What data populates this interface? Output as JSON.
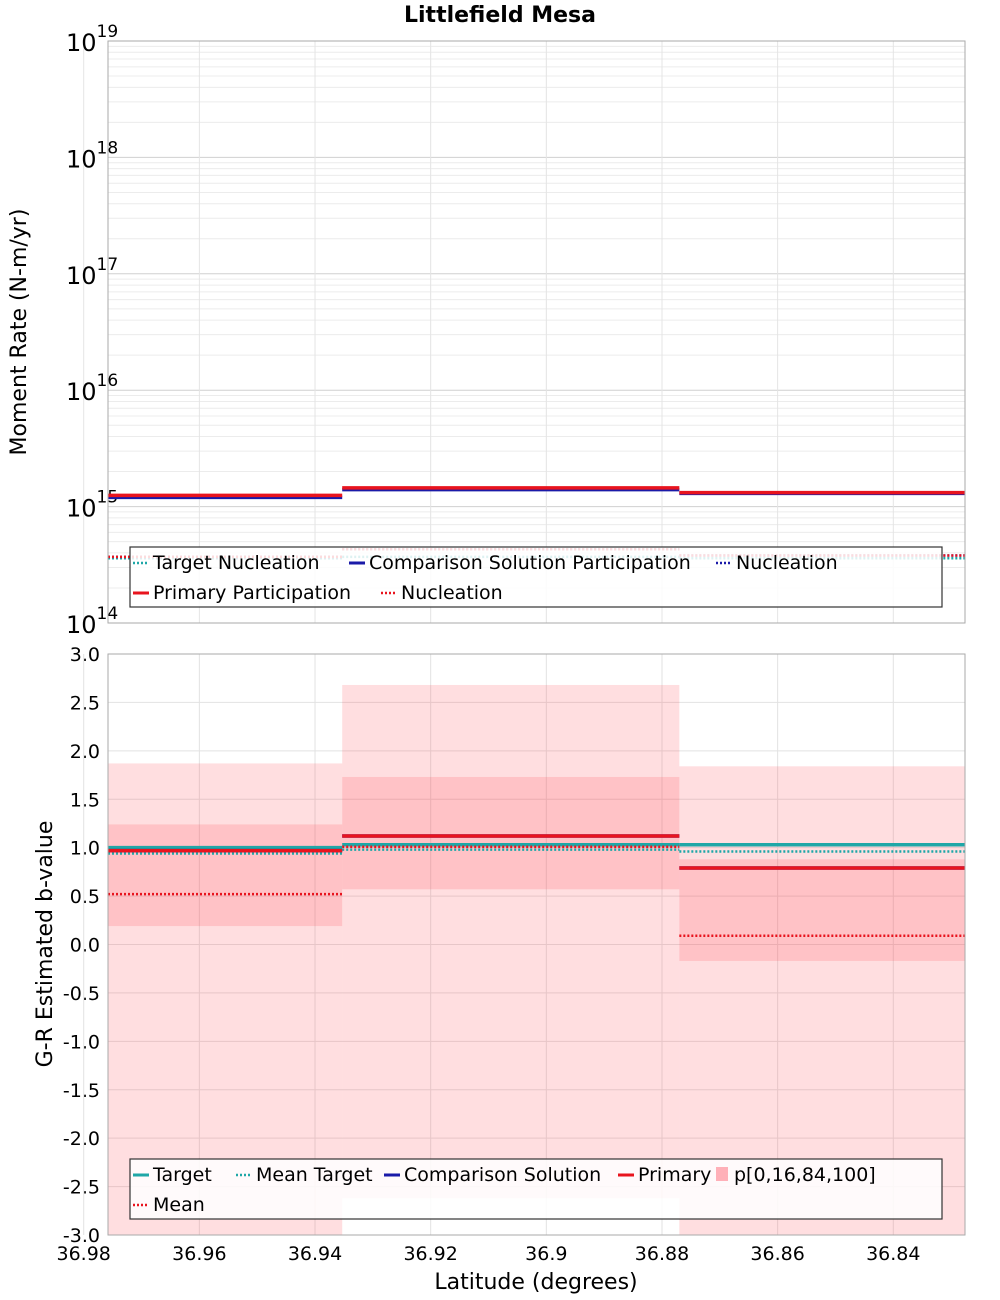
{
  "chart_data": [
    {
      "type": "line",
      "title": "Littlefield Mesa",
      "xlabel": "",
      "ylabel": "Moment Rate (N-m/yr)",
      "yscale": "log",
      "ylim": [
        100000000000000.0,
        1e+19
      ],
      "xlim": [
        36.9758,
        36.8276
      ],
      "x_reversed": true,
      "grid": true,
      "y_tick_labels": [
        {
          "value": 100000000000000.0,
          "base": "10",
          "exp": "14"
        },
        {
          "value": 1000000000000000.0,
          "base": "10",
          "exp": "15"
        },
        {
          "value": 1e+16,
          "base": "10",
          "exp": "16"
        },
        {
          "value": 1e+17,
          "base": "10",
          "exp": "17"
        },
        {
          "value": 1e+18,
          "base": "10",
          "exp": "18"
        },
        {
          "value": 1e+19,
          "base": "10",
          "exp": "19"
        }
      ],
      "bin_edges": [
        36.9758,
        36.9353,
        36.877,
        36.8276
      ],
      "series": [
        {
          "name": "Target Nucleation",
          "style": "dotted",
          "color": "#1fa7a7",
          "values": [
            360000000000000.0,
            370000000000000.0,
            360000000000000.0
          ]
        },
        {
          "name": "Comparison Solution Participation",
          "style": "solid",
          "color": "#1a1aa8",
          "values": [
            1200000000000000.0,
            1400000000000000.0,
            1300000000000000.0
          ]
        },
        {
          "name": "Nucleation",
          "style": "dotted",
          "color": "#1a1aa8",
          "values": [
            370000000000000.0,
            430000000000000.0,
            380000000000000.0
          ]
        },
        {
          "name": "Primary Participation",
          "style": "solid",
          "color": "#e8141e",
          "values": [
            1250000000000000.0,
            1450000000000000.0,
            1320000000000000.0
          ]
        },
        {
          "name": "Nucleation",
          "style": "dotted",
          "color": "#e8141e",
          "values": [
            370000000000000.0,
            430000000000000.0,
            380000000000000.0
          ]
        }
      ],
      "legend": {
        "placement": "bottom",
        "row1": [
          "Target Nucleation",
          "Comparison Solution Participation",
          "Nucleation"
        ],
        "row2": [
          "Primary Participation",
          "Nucleation"
        ]
      }
    },
    {
      "type": "line",
      "title": "",
      "xlabel": "Latitude (degrees)",
      "ylabel": "G-R Estimated b-value",
      "ylim": [
        -3.0,
        3.0
      ],
      "xlim": [
        36.9758,
        36.8276
      ],
      "x_reversed": true,
      "grid": true,
      "y_ticks": [
        "-3.0",
        "-2.5",
        "-2.0",
        "-1.5",
        "-1.0",
        "-0.5",
        "0.0",
        "0.5",
        "1.0",
        "1.5",
        "2.0",
        "2.5",
        "3.0"
      ],
      "x_ticks": [
        "36.98",
        "36.96",
        "36.94",
        "36.92",
        "36.9",
        "36.88",
        "36.86",
        "36.84"
      ],
      "bin_edges": [
        36.9758,
        36.9353,
        36.877,
        36.8276
      ],
      "bands": {
        "name": "p[0,16,84,100]",
        "outer": [
          [
            -3.0,
            1.87
          ],
          [
            -2.62,
            2.68
          ],
          [
            -3.0,
            1.84
          ]
        ],
        "inner": [
          [
            0.19,
            1.24
          ],
          [
            0.57,
            1.73
          ],
          [
            -0.17,
            0.88
          ]
        ]
      },
      "series": [
        {
          "name": "Target",
          "style": "solid",
          "color": "#1fa7a7",
          "values": [
            1.0,
            1.03,
            1.03
          ]
        },
        {
          "name": "Mean Target",
          "style": "dotted",
          "color": "#1fa7a7",
          "values": [
            0.94,
            0.98,
            0.96
          ]
        },
        {
          "name": "Comparison Solution",
          "style": "solid",
          "color": "#1a1aa8",
          "values": [
            0.97,
            1.12,
            0.79
          ]
        },
        {
          "name": "Primary",
          "style": "solid",
          "color": "#e8141e",
          "values": [
            0.97,
            1.12,
            0.79
          ]
        },
        {
          "name": "Mean",
          "style": "dotted",
          "color": "#e8141e",
          "values": [
            0.52,
            1.01,
            0.09
          ]
        }
      ],
      "legend": {
        "placement": "bottom",
        "row1": [
          "Target",
          "Mean Target",
          "Comparison Solution",
          "Primary",
          "p[0,16,84,100]"
        ],
        "row2": [
          "Mean"
        ]
      }
    }
  ]
}
